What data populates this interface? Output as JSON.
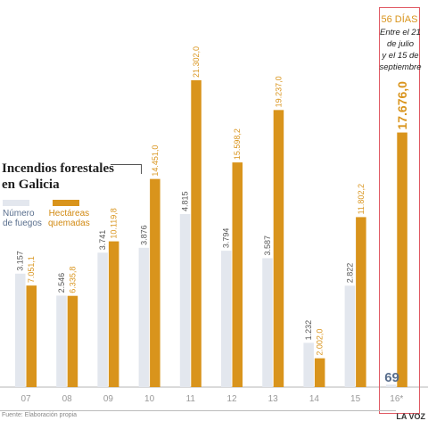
{
  "title_lines": [
    "Incendios forestales",
    "en Galicia"
  ],
  "legend": {
    "fires_lines": [
      "Número",
      "de fuegos"
    ],
    "hectares_lines": [
      "Hectáreas",
      "quemadas"
    ]
  },
  "highlight": {
    "days": "56 DÍAS",
    "note_lines": [
      "Entre el 21",
      "de julio",
      "y el 15 de",
      "septiembre"
    ]
  },
  "source": "Fuente: Elaboración propia",
  "brand": "LA VOZ",
  "colors": {
    "fires": "#e3e7ee",
    "fires_text": "#5a6f8e",
    "hectares": "#d9941c",
    "highlight": "#e05a64"
  },
  "chart_data": {
    "type": "bar",
    "categories": [
      "07",
      "08",
      "09",
      "10",
      "11",
      "12",
      "13",
      "14",
      "15",
      "16*"
    ],
    "series": [
      {
        "name": "Número de fuegos",
        "values": [
          3157,
          2546,
          3741,
          3876,
          4815,
          3794,
          3587,
          1232,
          2822,
          69
        ],
        "labels": [
          "3.157",
          "2.546",
          "3.741",
          "3.876",
          "4.815",
          "3.794",
          "3.587",
          "1.232",
          "2.822",
          "69"
        ]
      },
      {
        "name": "Hectáreas quemadas",
        "values": [
          7051.1,
          6335.8,
          10119.8,
          14451.0,
          21302.0,
          15598.2,
          19237.0,
          2002.0,
          11802.2,
          17676.0
        ],
        "labels": [
          "7.051,1",
          "6.335,8",
          "10.119,8",
          "14.451,0",
          "21.302,0",
          "15.598,2",
          "19.237,0",
          "2.002,0",
          "11.802,2",
          "17.676,0"
        ]
      }
    ],
    "grid": false
  }
}
